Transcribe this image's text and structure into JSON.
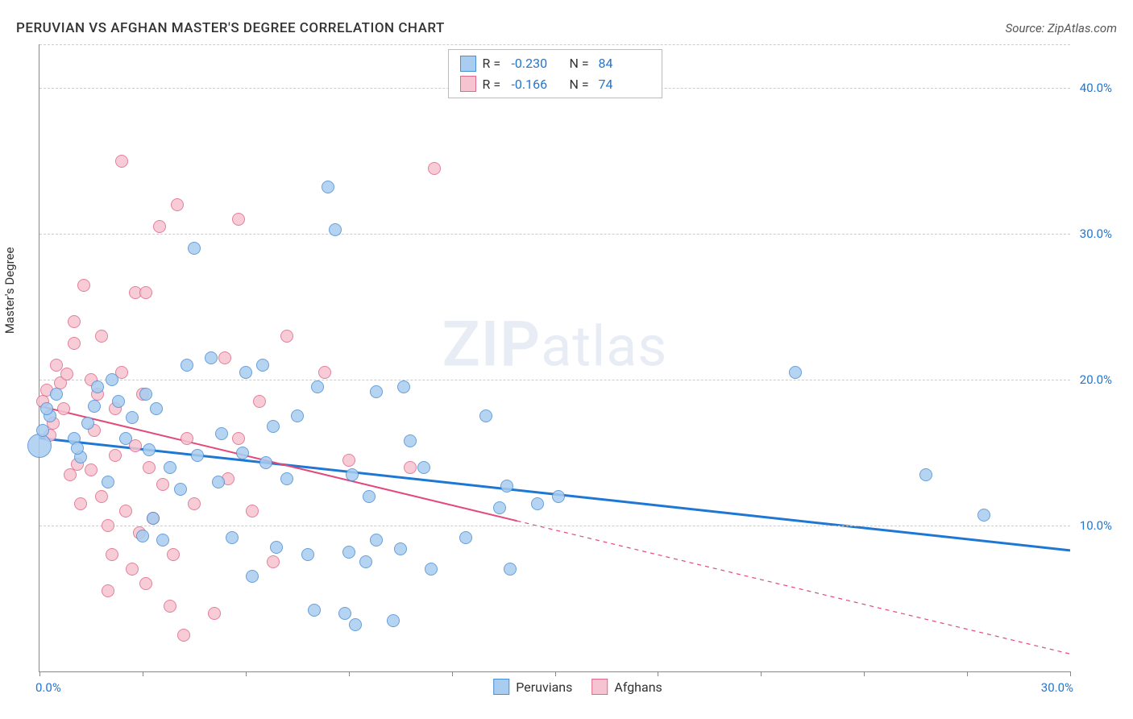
{
  "header": {
    "title": "PERUVIAN VS AFGHAN MASTER'S DEGREE CORRELATION CHART",
    "source": "Source: ZipAtlas.com"
  },
  "watermark": {
    "bold": "ZIP",
    "rest": "atlas"
  },
  "chart": {
    "type": "scatter",
    "y_label": "Master's Degree",
    "xlim": [
      0,
      30
    ],
    "ylim": [
      0,
      43
    ],
    "x_ticks_percent": [
      0,
      3,
      6,
      9,
      12,
      15,
      18,
      21,
      24,
      27,
      30
    ],
    "x_tick_labels": {
      "0": "0.0%",
      "30": "30.0%"
    },
    "y_gridlines": [
      {
        "val": 10,
        "label": "10.0%"
      },
      {
        "val": 20,
        "label": "20.0%"
      },
      {
        "val": 30,
        "label": "30.0%"
      },
      {
        "val": 40,
        "label": "40.0%"
      }
    ],
    "background_color": "#ffffff",
    "grid_color": "#cccccc",
    "axis_color": "#888888",
    "tick_label_color": "#2176d2",
    "label_fontsize": 15,
    "marker_radius": 8,
    "marker_opacity": 0.45,
    "series": [
      {
        "id": "peruvians",
        "name": "Peruvians",
        "fill": "#a9cdf0",
        "stroke": "#4d8fd6",
        "trend_color": "#1f77d4",
        "trend_width": 3,
        "R": "-0.230",
        "N": "84",
        "trend": {
          "x1": 0,
          "y1": 16.0,
          "x2": 30,
          "y2": 8.3,
          "solid_until_x": 30
        },
        "points": [
          [
            0.0,
            15.5,
            "large"
          ],
          [
            0.1,
            16.5
          ],
          [
            0.3,
            17.5
          ],
          [
            0.2,
            18.0
          ],
          [
            0.5,
            19.0
          ],
          [
            1.4,
            17.0
          ],
          [
            1.0,
            16.0
          ],
          [
            1.2,
            14.7
          ],
          [
            1.1,
            15.3
          ],
          [
            1.6,
            18.2
          ],
          [
            1.7,
            19.5
          ],
          [
            2.0,
            13.0
          ],
          [
            2.3,
            18.5
          ],
          [
            2.5,
            16.0
          ],
          [
            2.1,
            20.0
          ],
          [
            2.7,
            17.4
          ],
          [
            3.0,
            9.3
          ],
          [
            3.1,
            19.0
          ],
          [
            3.2,
            15.2
          ],
          [
            3.4,
            18.0
          ],
          [
            3.3,
            10.5
          ],
          [
            3.6,
            9.0
          ],
          [
            3.8,
            14.0
          ],
          [
            4.1,
            12.5
          ],
          [
            4.3,
            21.0
          ],
          [
            4.5,
            29.0
          ],
          [
            4.6,
            14.8
          ],
          [
            5.0,
            21.5
          ],
          [
            5.3,
            16.3
          ],
          [
            5.2,
            13.0
          ],
          [
            5.6,
            9.2
          ],
          [
            5.9,
            15.0
          ],
          [
            6.0,
            20.5
          ],
          [
            6.2,
            6.5
          ],
          [
            6.6,
            14.3
          ],
          [
            6.8,
            16.8
          ],
          [
            6.5,
            21.0
          ],
          [
            6.9,
            8.5
          ],
          [
            7.2,
            13.2
          ],
          [
            7.5,
            17.5
          ],
          [
            7.8,
            8.0
          ],
          [
            8.0,
            4.2
          ],
          [
            8.1,
            19.5
          ],
          [
            8.4,
            33.2
          ],
          [
            8.6,
            30.3
          ],
          [
            8.9,
            4.0
          ],
          [
            9.0,
            8.2
          ],
          [
            9.1,
            13.5
          ],
          [
            9.2,
            3.2
          ],
          [
            9.5,
            7.5
          ],
          [
            9.6,
            12.0
          ],
          [
            9.8,
            9.0
          ],
          [
            9.8,
            19.2
          ],
          [
            10.3,
            3.5
          ],
          [
            10.5,
            8.4
          ],
          [
            10.8,
            15.8
          ],
          [
            10.6,
            19.5
          ],
          [
            11.2,
            14.0
          ],
          [
            11.4,
            7.0
          ],
          [
            12.4,
            9.2
          ],
          [
            13.0,
            17.5
          ],
          [
            13.4,
            11.2
          ],
          [
            13.6,
            12.7
          ],
          [
            13.7,
            7.0
          ],
          [
            14.5,
            11.5
          ],
          [
            15.1,
            12.0
          ],
          [
            22.0,
            20.5
          ],
          [
            25.8,
            13.5
          ],
          [
            27.5,
            10.7
          ]
        ]
      },
      {
        "id": "afghans",
        "name": "Afghans",
        "fill": "#f6c4d1",
        "stroke": "#e06a8a",
        "trend_color": "#e24a7a",
        "trend_width": 2,
        "R": "-0.166",
        "N": "74",
        "trend": {
          "x1": 0,
          "y1": 18.2,
          "x2": 30,
          "y2": 1.2,
          "solid_until_x": 13.9
        },
        "points": [
          [
            0.1,
            18.5
          ],
          [
            0.2,
            19.3
          ],
          [
            0.4,
            17.0
          ],
          [
            0.3,
            16.2
          ],
          [
            0.5,
            21.0
          ],
          [
            0.6,
            19.8
          ],
          [
            0.7,
            18.0
          ],
          [
            0.8,
            20.4
          ],
          [
            0.9,
            13.5
          ],
          [
            1.0,
            22.5
          ],
          [
            1.0,
            24.0
          ],
          [
            1.1,
            14.2
          ],
          [
            1.2,
            11.5
          ],
          [
            1.3,
            26.5
          ],
          [
            1.5,
            13.8
          ],
          [
            1.5,
            20.0
          ],
          [
            1.6,
            16.5
          ],
          [
            1.7,
            19.0
          ],
          [
            1.8,
            12.0
          ],
          [
            1.8,
            23.0
          ],
          [
            2.0,
            10.0
          ],
          [
            2.0,
            5.5
          ],
          [
            2.1,
            8.0
          ],
          [
            2.2,
            14.8
          ],
          [
            2.2,
            18.0
          ],
          [
            2.4,
            20.5
          ],
          [
            2.4,
            35.0
          ],
          [
            2.5,
            11.0
          ],
          [
            2.7,
            7.0
          ],
          [
            2.8,
            15.5
          ],
          [
            2.8,
            26.0
          ],
          [
            2.9,
            9.5
          ],
          [
            3.0,
            19.0
          ],
          [
            3.1,
            6.0
          ],
          [
            3.1,
            26.0
          ],
          [
            3.2,
            14.0
          ],
          [
            3.3,
            10.5
          ],
          [
            3.5,
            30.5
          ],
          [
            3.6,
            12.8
          ],
          [
            3.8,
            4.5
          ],
          [
            3.9,
            8.0
          ],
          [
            4.0,
            32.0
          ],
          [
            4.2,
            2.5
          ],
          [
            4.3,
            16.0
          ],
          [
            4.5,
            11.5
          ],
          [
            5.1,
            4.0
          ],
          [
            5.4,
            21.5
          ],
          [
            5.5,
            13.2
          ],
          [
            5.8,
            16.0
          ],
          [
            5.8,
            31.0
          ],
          [
            6.2,
            11.0
          ],
          [
            6.4,
            18.5
          ],
          [
            6.8,
            7.5
          ],
          [
            7.2,
            23.0
          ],
          [
            8.3,
            20.5
          ],
          [
            9.0,
            14.5
          ],
          [
            10.8,
            14.0
          ],
          [
            11.5,
            34.5
          ]
        ]
      }
    ],
    "legend_top": {
      "border_color": "#bbbbbb",
      "rows": [
        {
          "swatch_ref": 0,
          "r_label": "R =",
          "n_label": "N ="
        },
        {
          "swatch_ref": 1,
          "r_label": "R =",
          "n_label": "N ="
        }
      ]
    },
    "legend_bottom": {
      "items": [
        {
          "swatch_ref": 0
        },
        {
          "swatch_ref": 1
        }
      ]
    }
  }
}
